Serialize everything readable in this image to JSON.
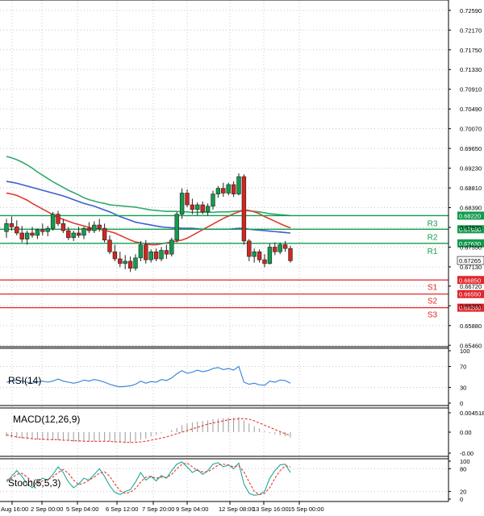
{
  "chart_data": {
    "type": "candlestick",
    "x_tick_labels": [
      "Aug 16:00",
      "2 Sep 00:00",
      "5 Sep 04:00",
      "6 Sep 12:00",
      "7 Sep 20:00",
      "9 Sep 04:00",
      "12 Sep 08:00",
      "13 Sep 16:00",
      "15 Sep 00:00"
    ],
    "price_panel": {
      "y_ticks": [
        "0.72590",
        "0.72170",
        "0.71750",
        "0.71330",
        "0.70910",
        "0.70490",
        "0.70070",
        "0.69650",
        "0.69230",
        "0.68810",
        "0.68390",
        "0.67970",
        "0.67550",
        "0.67130",
        "0.66720",
        "0.66300",
        "0.65880",
        "0.65460"
      ],
      "ylim": [
        0.6543,
        0.7281
      ],
      "candles": [
        [
          0.6788,
          0.6815,
          0.6775,
          0.6805
        ],
        [
          0.6805,
          0.682,
          0.679,
          0.6798
        ],
        [
          0.6798,
          0.6812,
          0.678,
          0.6785
        ],
        [
          0.6785,
          0.68,
          0.6765,
          0.6772
        ],
        [
          0.6772,
          0.679,
          0.676,
          0.6785
        ],
        [
          0.6785,
          0.6798,
          0.6775,
          0.678
        ],
        [
          0.678,
          0.6795,
          0.6772,
          0.6792
        ],
        [
          0.6792,
          0.6805,
          0.678,
          0.6788
        ],
        [
          0.6788,
          0.68,
          0.6778,
          0.6795
        ],
        [
          0.6795,
          0.683,
          0.679,
          0.6825
        ],
        [
          0.6825,
          0.6832,
          0.68,
          0.6805
        ],
        [
          0.6805,
          0.6815,
          0.6785,
          0.679
        ],
        [
          0.679,
          0.6798,
          0.677,
          0.6775
        ],
        [
          0.6775,
          0.679,
          0.6768,
          0.6785
        ],
        [
          0.6785,
          0.6798,
          0.6775,
          0.678
        ],
        [
          0.678,
          0.6798,
          0.6772,
          0.6795
        ],
        [
          0.6795,
          0.6808,
          0.6785,
          0.679
        ],
        [
          0.679,
          0.681,
          0.6785,
          0.6802
        ],
        [
          0.6802,
          0.6815,
          0.6788,
          0.6795
        ],
        [
          0.6795,
          0.6805,
          0.6765,
          0.677
        ],
        [
          0.677,
          0.678,
          0.674,
          0.6745
        ],
        [
          0.6745,
          0.676,
          0.6725,
          0.673
        ],
        [
          0.673,
          0.6745,
          0.6712,
          0.672
        ],
        [
          0.672,
          0.6738,
          0.6708,
          0.6725
        ],
        [
          0.6725,
          0.6735,
          0.6702,
          0.671
        ],
        [
          0.671,
          0.674,
          0.6705,
          0.6732
        ],
        [
          0.6732,
          0.6768,
          0.6725,
          0.676
        ],
        [
          0.676,
          0.677,
          0.672,
          0.6728
        ],
        [
          0.6728,
          0.675,
          0.6722,
          0.6745
        ],
        [
          0.6745,
          0.6752,
          0.6725,
          0.673
        ],
        [
          0.673,
          0.6755,
          0.6725,
          0.6748
        ],
        [
          0.6748,
          0.676,
          0.673,
          0.674
        ],
        [
          0.674,
          0.6775,
          0.6735,
          0.677
        ],
        [
          0.677,
          0.683,
          0.6765,
          0.6825
        ],
        [
          0.6825,
          0.688,
          0.6815,
          0.687
        ],
        [
          0.687,
          0.6878,
          0.684,
          0.6845
        ],
        [
          0.6845,
          0.6858,
          0.6825,
          0.6835
        ],
        [
          0.6835,
          0.685,
          0.6822,
          0.6845
        ],
        [
          0.6845,
          0.6852,
          0.6825,
          0.683
        ],
        [
          0.683,
          0.6848,
          0.6822,
          0.6842
        ],
        [
          0.6842,
          0.6875,
          0.6835,
          0.6868
        ],
        [
          0.6868,
          0.6885,
          0.686,
          0.688
        ],
        [
          0.688,
          0.6892,
          0.6862,
          0.687
        ],
        [
          0.687,
          0.6892,
          0.6865,
          0.6888
        ],
        [
          0.6888,
          0.6895,
          0.6862,
          0.6868
        ],
        [
          0.6868,
          0.6912,
          0.6865,
          0.6905
        ],
        [
          0.6905,
          0.691,
          0.676,
          0.6768
        ],
        [
          0.6768,
          0.6772,
          0.6725,
          0.6735
        ],
        [
          0.6735,
          0.6752,
          0.6722,
          0.6745
        ],
        [
          0.6745,
          0.675,
          0.6722,
          0.6728
        ],
        [
          0.6728,
          0.674,
          0.6712,
          0.672
        ],
        [
          0.672,
          0.6762,
          0.6718,
          0.6755
        ],
        [
          0.6755,
          0.6765,
          0.6738,
          0.6745
        ],
        [
          0.6745,
          0.6765,
          0.674,
          0.676
        ],
        [
          0.676,
          0.6768,
          0.6745,
          0.6752
        ],
        [
          0.6752,
          0.6758,
          0.6722,
          0.6726
        ]
      ],
      "moving_averages": [
        {
          "color": "#2eaa6e",
          "values": [
            0.6948,
            0.6945,
            0.6941,
            0.6936,
            0.693,
            0.6923,
            0.6915,
            0.6908,
            0.6901,
            0.6894,
            0.6888,
            0.6882,
            0.6876,
            0.6871,
            0.6866,
            0.686,
            0.6856,
            0.6853,
            0.685,
            0.6848,
            0.6845,
            0.6844,
            0.6843,
            0.6842,
            0.6841,
            0.684,
            0.6838,
            0.6836,
            0.6834,
            0.6833,
            0.6832,
            0.6831,
            0.6831,
            0.6831,
            0.683,
            0.683,
            0.6829,
            0.6829,
            0.6829,
            0.6829,
            0.6829,
            0.683,
            0.683,
            0.683,
            0.6831,
            0.6832,
            0.6833,
            0.6832,
            0.6831,
            0.683,
            0.6828,
            0.6826,
            0.6825,
            0.6824,
            0.6823,
            0.6822
          ]
        },
        {
          "color": "#3a5fd0",
          "values": [
            0.6895,
            0.6893,
            0.6891,
            0.6888,
            0.6885,
            0.6882,
            0.6879,
            0.6876,
            0.6873,
            0.687,
            0.6867,
            0.6864,
            0.686,
            0.6856,
            0.6852,
            0.6848,
            0.6845,
            0.6842,
            0.6838,
            0.6834,
            0.683,
            0.6825,
            0.682,
            0.6816,
            0.6812,
            0.6808,
            0.6806,
            0.6804,
            0.6802,
            0.68,
            0.6798,
            0.6797,
            0.6796,
            0.6796,
            0.6795,
            0.6795,
            0.6795,
            0.6794,
            0.6793,
            0.6793,
            0.6793,
            0.6793,
            0.6793,
            0.6793,
            0.6794,
            0.6795,
            0.6795,
            0.6793,
            0.6792,
            0.6791,
            0.679,
            0.6789,
            0.6788,
            0.6787,
            0.6786,
            0.6785
          ]
        },
        {
          "color": "#e03a2e",
          "values": [
            0.687,
            0.6868,
            0.6865,
            0.686,
            0.6855,
            0.6848,
            0.6842,
            0.6836,
            0.683,
            0.6824,
            0.6818,
            0.6814,
            0.681,
            0.6806,
            0.6803,
            0.68,
            0.6797,
            0.6795,
            0.6793,
            0.6791,
            0.6788,
            0.6785,
            0.678,
            0.6775,
            0.677,
            0.6766,
            0.6764,
            0.6762,
            0.676,
            0.676,
            0.6762,
            0.6764,
            0.6766,
            0.6768,
            0.677,
            0.6774,
            0.678,
            0.6786,
            0.6792,
            0.6798,
            0.6804,
            0.681,
            0.6816,
            0.6821,
            0.6826,
            0.683,
            0.6834,
            0.6833,
            0.683,
            0.6826,
            0.682,
            0.6815,
            0.681,
            0.6805,
            0.68,
            0.6796
          ]
        }
      ],
      "levels": [
        {
          "name": "R3",
          "value": 0.6822,
          "value_label": "0.68220",
          "color": "#139b4d"
        },
        {
          "name": "R2",
          "value": 0.6793,
          "value_label": "0.67930",
          "color": "#139b4d"
        },
        {
          "name": "R1",
          "value": 0.6763,
          "value_label": "0.67630",
          "color": "#139b4d"
        },
        {
          "name": "S1",
          "value": 0.6685,
          "value_label": "0.66850",
          "color": "#e0262a"
        },
        {
          "name": "S2",
          "value": 0.6655,
          "value_label": "0.66550",
          "color": "#e0262a"
        },
        {
          "name": "S3",
          "value": 0.6626,
          "value_label": "0.66260",
          "color": "#e0262a"
        }
      ],
      "current_price": {
        "value": 0.67265,
        "label": "0.67265"
      }
    },
    "rsi_panel": {
      "label": "RSI(14)",
      "y_ticks": [
        "100",
        "70",
        "30",
        "0"
      ],
      "ylim": [
        0,
        100
      ],
      "color": "#2f7fd6",
      "values": [
        40,
        42,
        44,
        42,
        40,
        38,
        40,
        42,
        40,
        42,
        46,
        42,
        40,
        38,
        40,
        44,
        42,
        45,
        43,
        40,
        36,
        33,
        31,
        32,
        33,
        36,
        42,
        38,
        41,
        40,
        45,
        43,
        48,
        56,
        62,
        57,
        59,
        63,
        60,
        62,
        66,
        68,
        64,
        66,
        63,
        70,
        40,
        36,
        38,
        35,
        34,
        42,
        40,
        44,
        43,
        38
      ]
    },
    "macd_panel": {
      "label": "MACD(12,26,9)",
      "y_ticks": [
        "0.004518",
        "0.00",
        "-0.00"
      ],
      "ylim": [
        -0.0045,
        0.0045
      ],
      "histogram": [
        -0.0008,
        -0.001,
        -0.0011,
        -0.0012,
        -0.0013,
        -0.0014,
        -0.0014,
        -0.0015,
        -0.0015,
        -0.0015,
        -0.0015,
        -0.0016,
        -0.0017,
        -0.0018,
        -0.0018,
        -0.0018,
        -0.0018,
        -0.0017,
        -0.0016,
        -0.0016,
        -0.0017,
        -0.0019,
        -0.002,
        -0.002,
        -0.0019,
        -0.0017,
        -0.0014,
        -0.0012,
        -0.0008,
        -0.0005,
        -0.0002,
        0.0,
        0.0004,
        0.0008,
        0.0013,
        0.0016,
        0.0018,
        0.002,
        0.0021,
        0.0022,
        0.0024,
        0.0025,
        0.0026,
        0.0027,
        0.0027,
        0.0028,
        0.0022,
        0.0016,
        0.0011,
        0.0007,
        0.0002,
        -0.0002,
        -0.0004,
        -0.0006,
        -0.0008,
        -0.001
      ],
      "signal": [
        -0.0005,
        -0.0007,
        -0.0009,
        -0.001,
        -0.0011,
        -0.0012,
        -0.0013,
        -0.0013,
        -0.0014,
        -0.0014,
        -0.0014,
        -0.0015,
        -0.0015,
        -0.0016,
        -0.0016,
        -0.0017,
        -0.0017,
        -0.0017,
        -0.0017,
        -0.0017,
        -0.0017,
        -0.0018,
        -0.0018,
        -0.0019,
        -0.0019,
        -0.0019,
        -0.0018,
        -0.0017,
        -0.0015,
        -0.0013,
        -0.0011,
        -0.0009,
        -0.0006,
        -0.0003,
        0.0,
        0.0003,
        0.0006,
        0.0009,
        0.0012,
        0.0015,
        0.0017,
        0.0019,
        0.0021,
        0.0023,
        0.0024,
        0.0025,
        0.0025,
        0.0024,
        0.0021,
        0.0017,
        0.0013,
        0.0009,
        0.0005,
        0.0001,
        -0.0003,
        -0.0006
      ]
    },
    "stoch_panel": {
      "label": "Stoch(5,5,3)",
      "y_ticks": [
        "100",
        "80",
        "20",
        "0"
      ],
      "ylim": [
        0,
        100
      ],
      "k_values": [
        45,
        60,
        75,
        60,
        40,
        30,
        45,
        55,
        50,
        65,
        85,
        70,
        45,
        30,
        40,
        55,
        50,
        65,
        80,
        60,
        35,
        18,
        12,
        20,
        25,
        45,
        70,
        50,
        60,
        48,
        62,
        55,
        75,
        92,
        98,
        85,
        70,
        78,
        65,
        75,
        92,
        96,
        85,
        90,
        80,
        95,
        40,
        15,
        10,
        12,
        20,
        55,
        75,
        90,
        92,
        70
      ],
      "d_values": [
        50,
        55,
        65,
        68,
        58,
        45,
        40,
        48,
        52,
        58,
        70,
        78,
        68,
        50,
        38,
        42,
        50,
        58,
        68,
        72,
        60,
        40,
        22,
        15,
        18,
        28,
        45,
        58,
        60,
        55,
        58,
        57,
        65,
        80,
        92,
        95,
        85,
        75,
        72,
        72,
        80,
        90,
        92,
        90,
        85,
        88,
        72,
        45,
        20,
        12,
        15,
        30,
        55,
        75,
        88,
        85
      ]
    }
  },
  "colors": {
    "bull": "#139b4d",
    "bear": "#d0271f",
    "grid": "#c8c8c8",
    "axis_text": "#000000"
  }
}
